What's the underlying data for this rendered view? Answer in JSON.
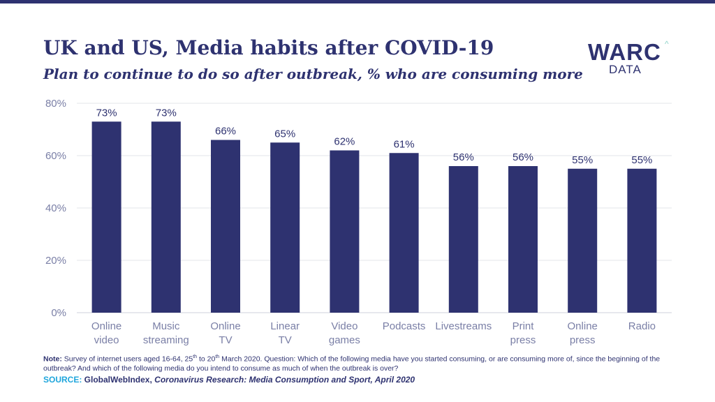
{
  "header": {
    "title": "UK and US, Media habits after COVID-19",
    "subtitle": "Plan to continue to do so after outbreak, % who are consuming more"
  },
  "logo": {
    "main": "WARC",
    "sub": "DATA",
    "caret": "^"
  },
  "chart_data": {
    "type": "bar",
    "categories": [
      [
        "Online",
        "video"
      ],
      [
        "Music",
        "streaming"
      ],
      [
        "Online",
        "TV"
      ],
      [
        "Linear",
        "TV"
      ],
      [
        "Video",
        "games"
      ],
      [
        "Podcasts"
      ],
      [
        "Livestreams"
      ],
      [
        "Print",
        "press"
      ],
      [
        "Online",
        "press"
      ],
      [
        "Radio"
      ]
    ],
    "values": [
      73,
      73,
      66,
      65,
      62,
      61,
      56,
      56,
      55,
      55
    ],
    "value_labels": [
      "73%",
      "73%",
      "66%",
      "65%",
      "62%",
      "61%",
      "56%",
      "56%",
      "55%",
      "55%"
    ],
    "yticks": [
      0,
      20,
      40,
      60,
      80
    ],
    "ytick_labels": [
      "0%",
      "20%",
      "40%",
      "60%",
      "80%"
    ],
    "ylim": [
      0,
      80
    ],
    "grid": true,
    "legend": "none",
    "bar_color": "#2e3270"
  },
  "footer": {
    "note_label": "Note:",
    "note_part1": " Survey of internet users aged 16-64, 25",
    "note_sup1": "th",
    "note_part2": " to 20",
    "note_sup2": "th",
    "note_part3": " March 2020. Question: Which of the following media have you started consuming, or are consuming more of, since the beginning of the outbreak? And which of the following media do you intend to consume as much of when the outbreak is over?",
    "source_label": "SOURCE:",
    "source_org": " GlobalWebIndex,",
    "source_title": " Coronavirus Research: Media Consumption and Sport, April 2020"
  }
}
